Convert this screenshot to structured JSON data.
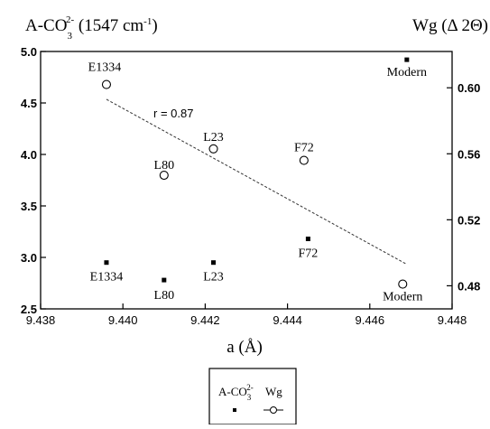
{
  "chart_data": {
    "type": "scatter",
    "left_axis_title": "A-CO",
    "left_axis_title_sup": "2-",
    "left_axis_title_sub": "3",
    "left_axis_title_rest": " (1547 cm",
    "left_axis_title_unit_sup": "-1",
    "left_axis_title_close": ")",
    "right_axis_title": "Wg  (Δ 2Θ)",
    "xlabel": "a (Å)",
    "xlim": [
      9.438,
      9.448
    ],
    "x_ticks": [
      "9.438",
      "9.440",
      "9.442",
      "9.444",
      "9.446",
      "9.448"
    ],
    "ylim_left": [
      2.5,
      5.0
    ],
    "y_ticks_left": [
      "2.5",
      "3.0",
      "3.5",
      "4.0",
      "4.5",
      "5.0"
    ],
    "ylim_right": [
      0.466,
      0.622
    ],
    "y_ticks_right": [
      "0.48",
      "0.52",
      "0.56",
      "0.60"
    ],
    "series": [
      {
        "name": "A-CO3 2-",
        "marker": "filled-square",
        "axis": "left",
        "points": [
          {
            "label": "E1334",
            "x": 9.4396,
            "y": 2.95
          },
          {
            "label": "L80",
            "x": 9.441,
            "y": 2.78
          },
          {
            "label": "L23",
            "x": 9.4422,
            "y": 2.95
          },
          {
            "label": "F72",
            "x": 9.4445,
            "y": 3.18
          },
          {
            "label": "Modern",
            "x": 9.4469,
            "y": 4.92
          }
        ]
      },
      {
        "name": "Wg",
        "marker": "open-circle",
        "axis": "right",
        "points": [
          {
            "label": "E1334",
            "x": 9.4396,
            "y": 0.602
          },
          {
            "label": "L80",
            "x": 9.441,
            "y": 0.547
          },
          {
            "label": "L23",
            "x": 9.4422,
            "y": 0.563
          },
          {
            "label": "F72",
            "x": 9.4444,
            "y": 0.556
          },
          {
            "label": "Modern",
            "x": 9.4468,
            "y": 0.481
          }
        ]
      }
    ],
    "fit_line": {
      "axis": "right",
      "from": [
        9.4396,
        0.593
      ],
      "to": [
        9.4469,
        0.493
      ],
      "style": "dashed"
    },
    "annotation": "r = 0.87",
    "legend": {
      "placement": "bottom-center",
      "entries": [
        {
          "main": "A-CO",
          "sub": "3",
          "sup": "2-",
          "marker": "filled-square"
        },
        {
          "main": "Wg",
          "marker": "open-circle"
        }
      ]
    }
  }
}
